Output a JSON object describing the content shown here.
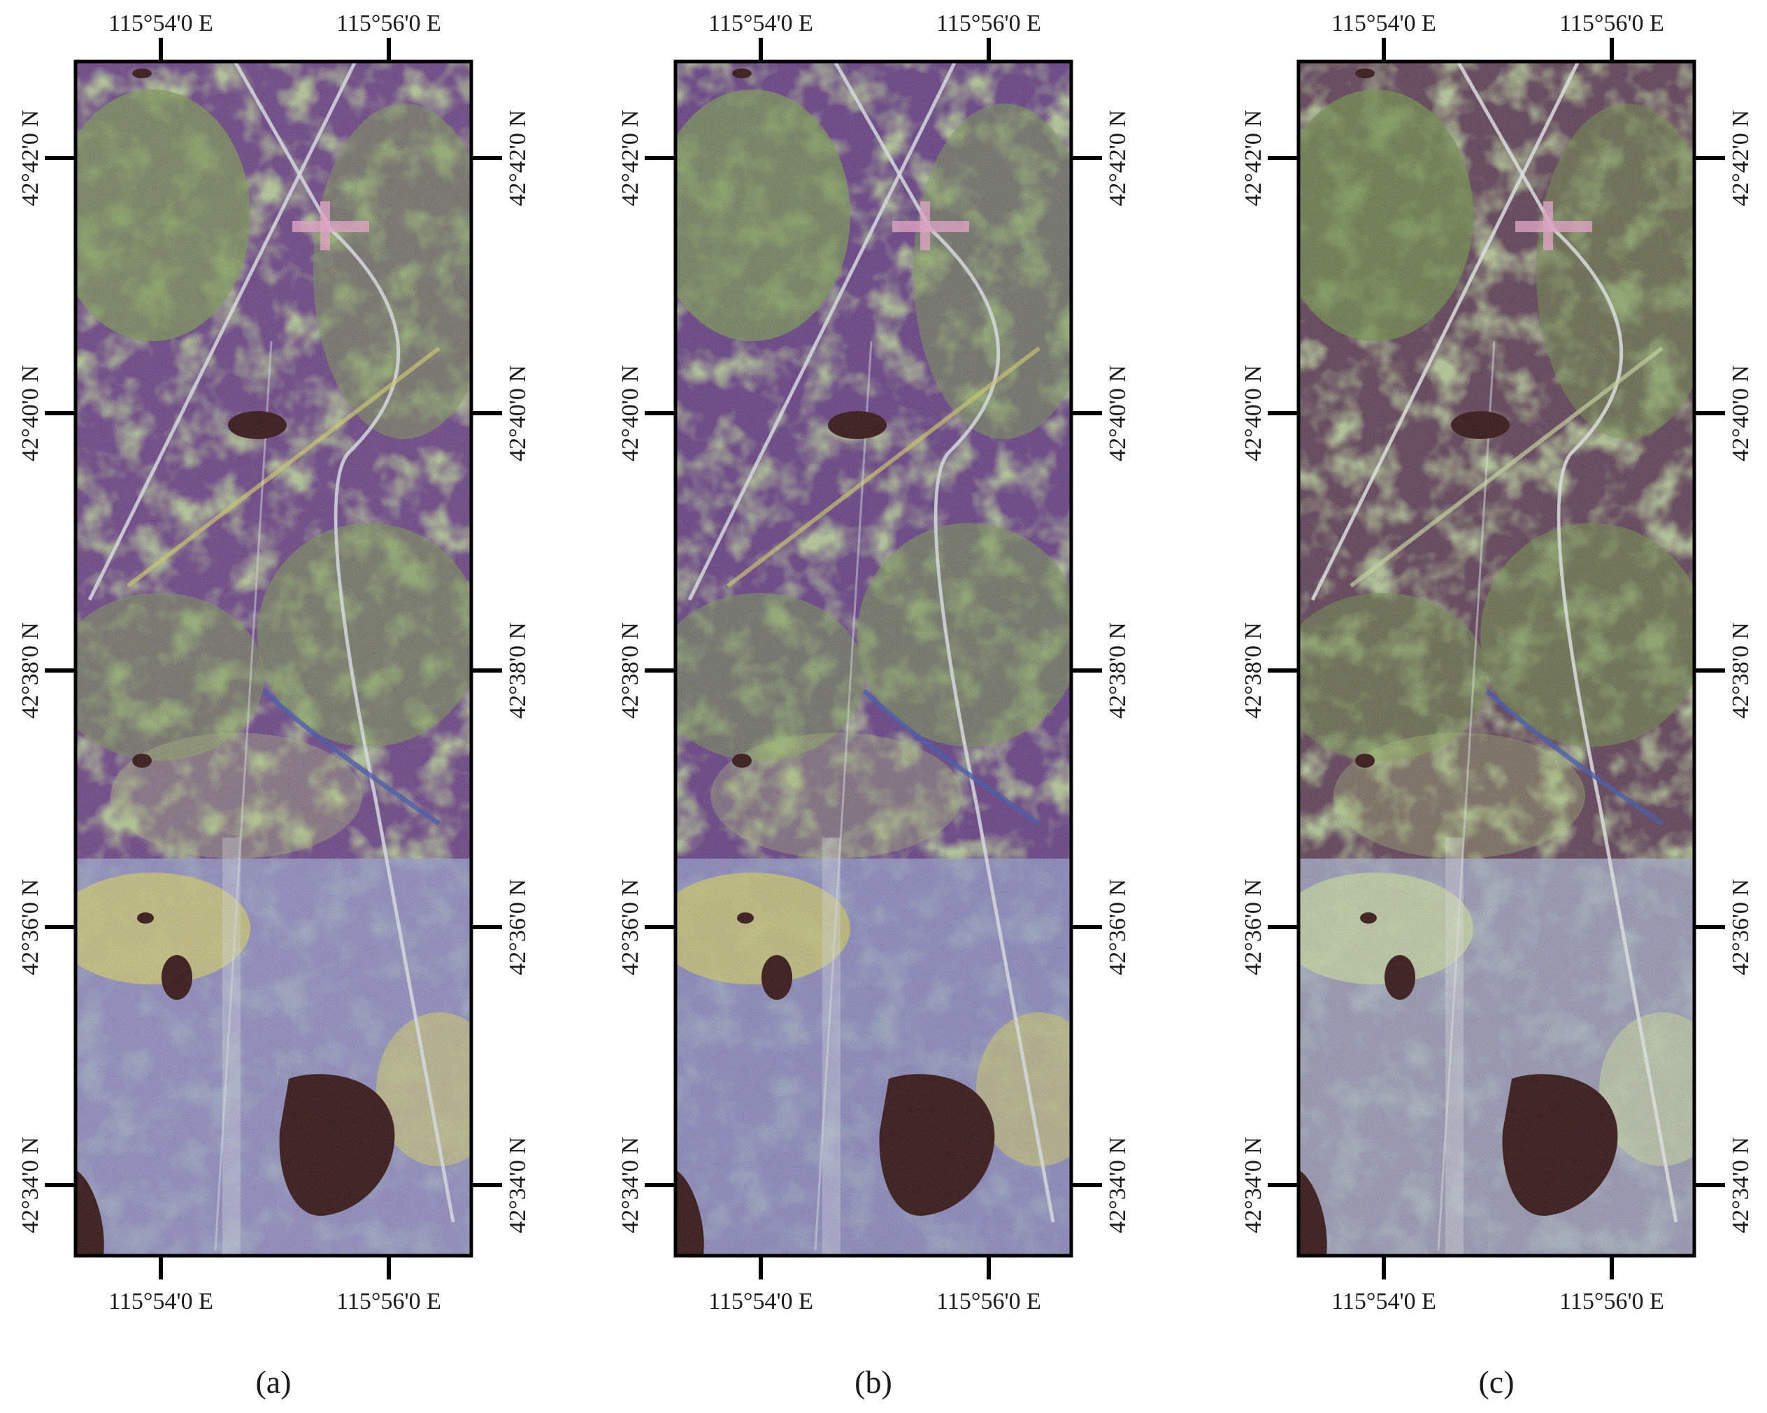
{
  "figure": {
    "panels": [
      {
        "id": "a",
        "caption": "(a)",
        "x_top_labels": [
          "115°54'0 E",
          "115°56'0 E"
        ],
        "x_bottom_labels": [
          "115°54'0 E",
          "115°56'0 E"
        ],
        "y_left_labels": [
          "42°42'0 N",
          "42°40'0 N",
          "42°38'0 N",
          "42°36'0 N",
          "42°34'0 N"
        ],
        "y_right_labels": [
          "42°42'0 N",
          "42°40'0 N",
          "42°38'0 N",
          "42°36'0 N",
          "42°34'0 N"
        ],
        "colors": {
          "bg": "#6a3f86",
          "veg": "#7c9b52",
          "veg_light": "#b8cf7a",
          "water": "#2a0606",
          "plain": "#9aa0d2",
          "yellow": "#d9d36a",
          "road": "#e6ecf2"
        }
      },
      {
        "id": "b",
        "caption": "(b)",
        "x_top_labels": [
          "115°54'0 E",
          "115°56'0 E"
        ],
        "x_bottom_labels": [
          "115°54'0 E",
          "115°56'0 E"
        ],
        "y_left_labels": [
          "42°42'0 N",
          "42°40'0 N",
          "42°38'0 N",
          "42°36'0 N",
          "42°34'0 N"
        ],
        "y_right_labels": [
          "42°42'0 N",
          "42°40'0 N",
          "42°38'0 N",
          "42°36'0 N",
          "42°34'0 N"
        ],
        "colors": {
          "bg": "#643a84",
          "veg": "#789a50",
          "veg_light": "#b3cc76",
          "water": "#2a0606",
          "plain": "#959cd0",
          "yellow": "#d6d066",
          "road": "#e6ecf2"
        }
      },
      {
        "id": "c",
        "caption": "(c)",
        "x_top_labels": [
          "115°54'0 E",
          "115°56'0 E"
        ],
        "x_bottom_labels": [
          "115°54'0 E",
          "115°56'0 E"
        ],
        "y_left_labels": [
          "42°42'0 N",
          "42°40'0 N",
          "42°38'0 N",
          "42°36'0 N",
          "42°34'0 N"
        ],
        "y_right_labels": [
          "42°42'0 N",
          "42°40'0 N",
          "42°38'0 N",
          "42°36'0 N",
          "42°34'0 N"
        ],
        "colors": {
          "bg": "#5c3a52",
          "veg": "#6f9046",
          "veg_light": "#aecb74",
          "water": "#2a0606",
          "plain": "#a9b2cf",
          "yellow": "#cfe0a2",
          "road": "#eef2f2"
        }
      }
    ]
  }
}
